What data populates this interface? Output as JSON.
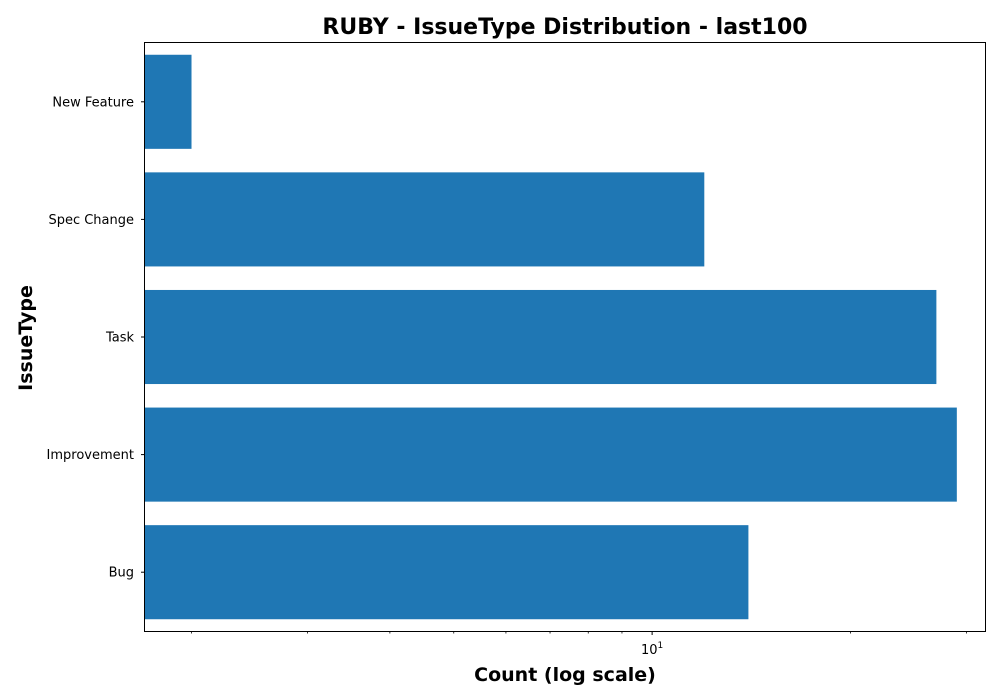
{
  "chart_data": {
    "type": "bar",
    "orientation": "horizontal",
    "title": "RUBY - IssueType Distribution - last100",
    "xlabel": "Count (log scale)",
    "ylabel": "IssueType",
    "x_scale": "log",
    "xlim": [
      1.7,
      32
    ],
    "x_major_ticks": [
      {
        "value": 10,
        "base": "10",
        "exponent": "1"
      }
    ],
    "x_minor_ticks": [
      2,
      3,
      4,
      5,
      6,
      7,
      8,
      9,
      20,
      30
    ],
    "categories": [
      "Bug",
      "Improvement",
      "Task",
      "Spec Change",
      "New Feature"
    ],
    "values": [
      14,
      29,
      27,
      12,
      2
    ],
    "bar_color": "#1f77b4",
    "grid": false,
    "legend": "none"
  }
}
